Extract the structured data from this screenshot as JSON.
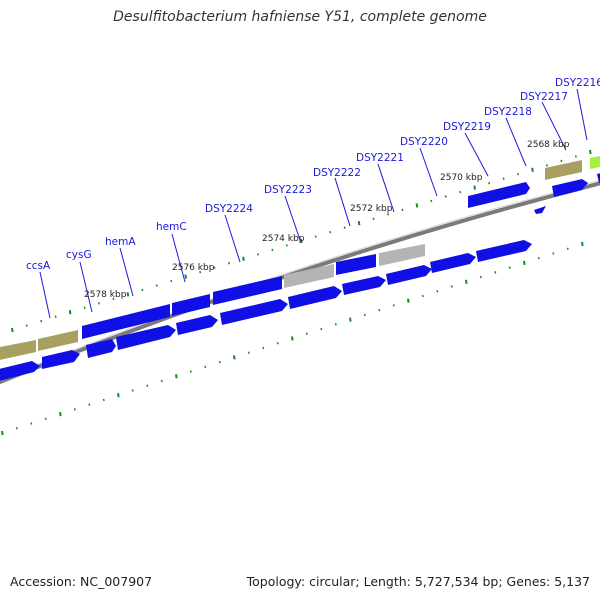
{
  "title": "Desulfitobacterium hafniense Y51, complete genome",
  "footer": {
    "accession": "Accession: NC_007907",
    "summary": "Topology: circular; Length: 5,727,534 bp; Genes: 5,137"
  },
  "colors": {
    "cds": "#1010e6",
    "cds_light": "#4a4aff",
    "gray_feature": "#b4b4b4",
    "olive_feature": "#a8a060",
    "lime_feature": "#a8f040",
    "backbone": "#7a7a7a",
    "tick": "#1a8a1a",
    "label": "#1a1adb"
  },
  "gene_labels": [
    "ccsA",
    "cysG",
    "hemA",
    "hemC",
    "DSY2224",
    "DSY2223",
    "DSY2222",
    "DSY2221",
    "DSY2220",
    "DSY2219",
    "DSY2218",
    "DSY2217",
    "DSY2216"
  ],
  "kbp_labels": [
    "2578 kbp",
    "2576 kbp",
    "2574 kbp",
    "2572 kbp",
    "2570 kbp",
    "2568 kbp"
  ]
}
